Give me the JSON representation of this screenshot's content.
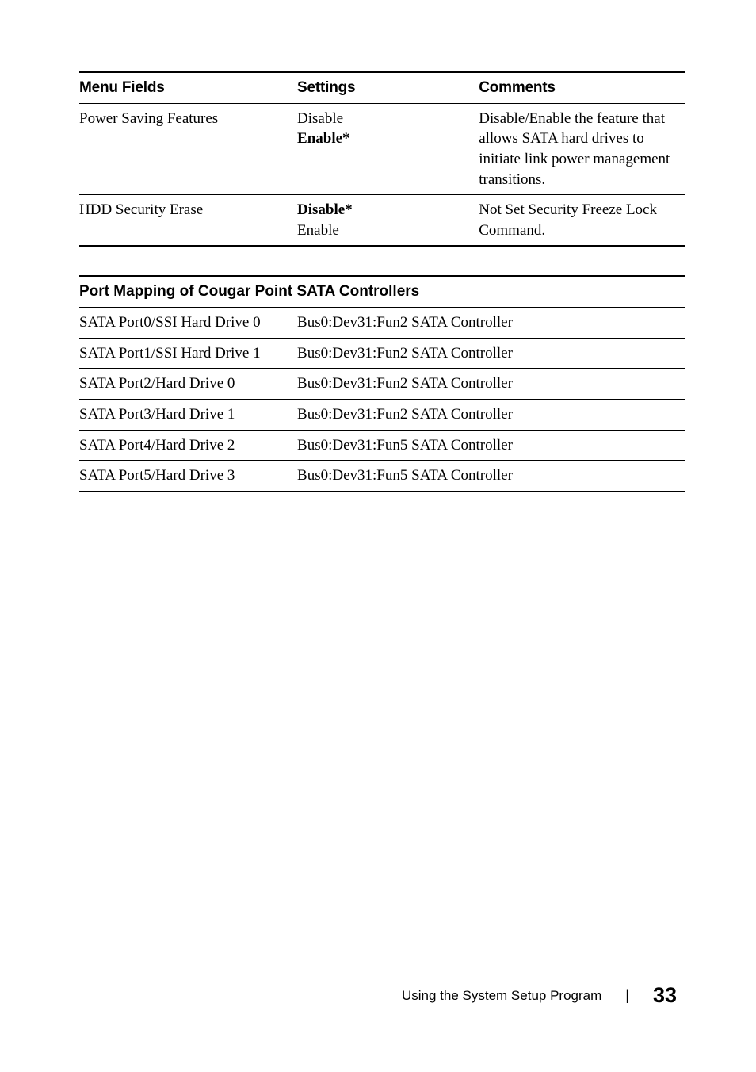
{
  "colors": {
    "text": "#000000",
    "background": "#ffffff",
    "rule": "#000000"
  },
  "typography": {
    "body_family": "Georgia, 'Times New Roman', serif",
    "header_family": "'Arial Black', Helvetica, Arial, sans-serif",
    "body_size_pt": 14,
    "header_size_pt": 14
  },
  "table1": {
    "headers": [
      "Menu Fields",
      "Settings",
      "Comments"
    ],
    "rows": [
      {
        "menu": "Power Saving Features",
        "settings": [
          {
            "text": "Disable",
            "bold": false
          },
          {
            "text": "Enable*",
            "bold": true
          }
        ],
        "comments": "Disable/Enable the feature that allows SATA hard drives to initiate link power management transitions."
      },
      {
        "menu": "HDD Security Erase",
        "settings": [
          {
            "text": "Disable*",
            "bold": true
          },
          {
            "text": "Enable",
            "bold": false
          }
        ],
        "comments": "Not Set Security Freeze Lock Command."
      }
    ]
  },
  "table2": {
    "title": "Port Mapping of Cougar Point SATA Controllers",
    "rows": [
      {
        "port": "SATA Port0/SSI Hard Drive 0",
        "controller": "Bus0:Dev31:Fun2 SATA Controller"
      },
      {
        "port": "SATA Port1/SSI Hard Drive 1",
        "controller": "Bus0:Dev31:Fun2 SATA Controller"
      },
      {
        "port": "SATA Port2/Hard Drive 0",
        "controller": "Bus0:Dev31:Fun2 SATA Controller"
      },
      {
        "port": "SATA Port3/Hard Drive 1",
        "controller": "Bus0:Dev31:Fun2 SATA Controller"
      },
      {
        "port": "SATA Port4/Hard Drive 2",
        "controller": "Bus0:Dev31:Fun5 SATA Controller"
      },
      {
        "port": "SATA Port5/Hard Drive 3",
        "controller": "Bus0:Dev31:Fun5 SATA Controller"
      }
    ]
  },
  "footer": {
    "label": "Using the System Setup Program",
    "page": "33"
  }
}
